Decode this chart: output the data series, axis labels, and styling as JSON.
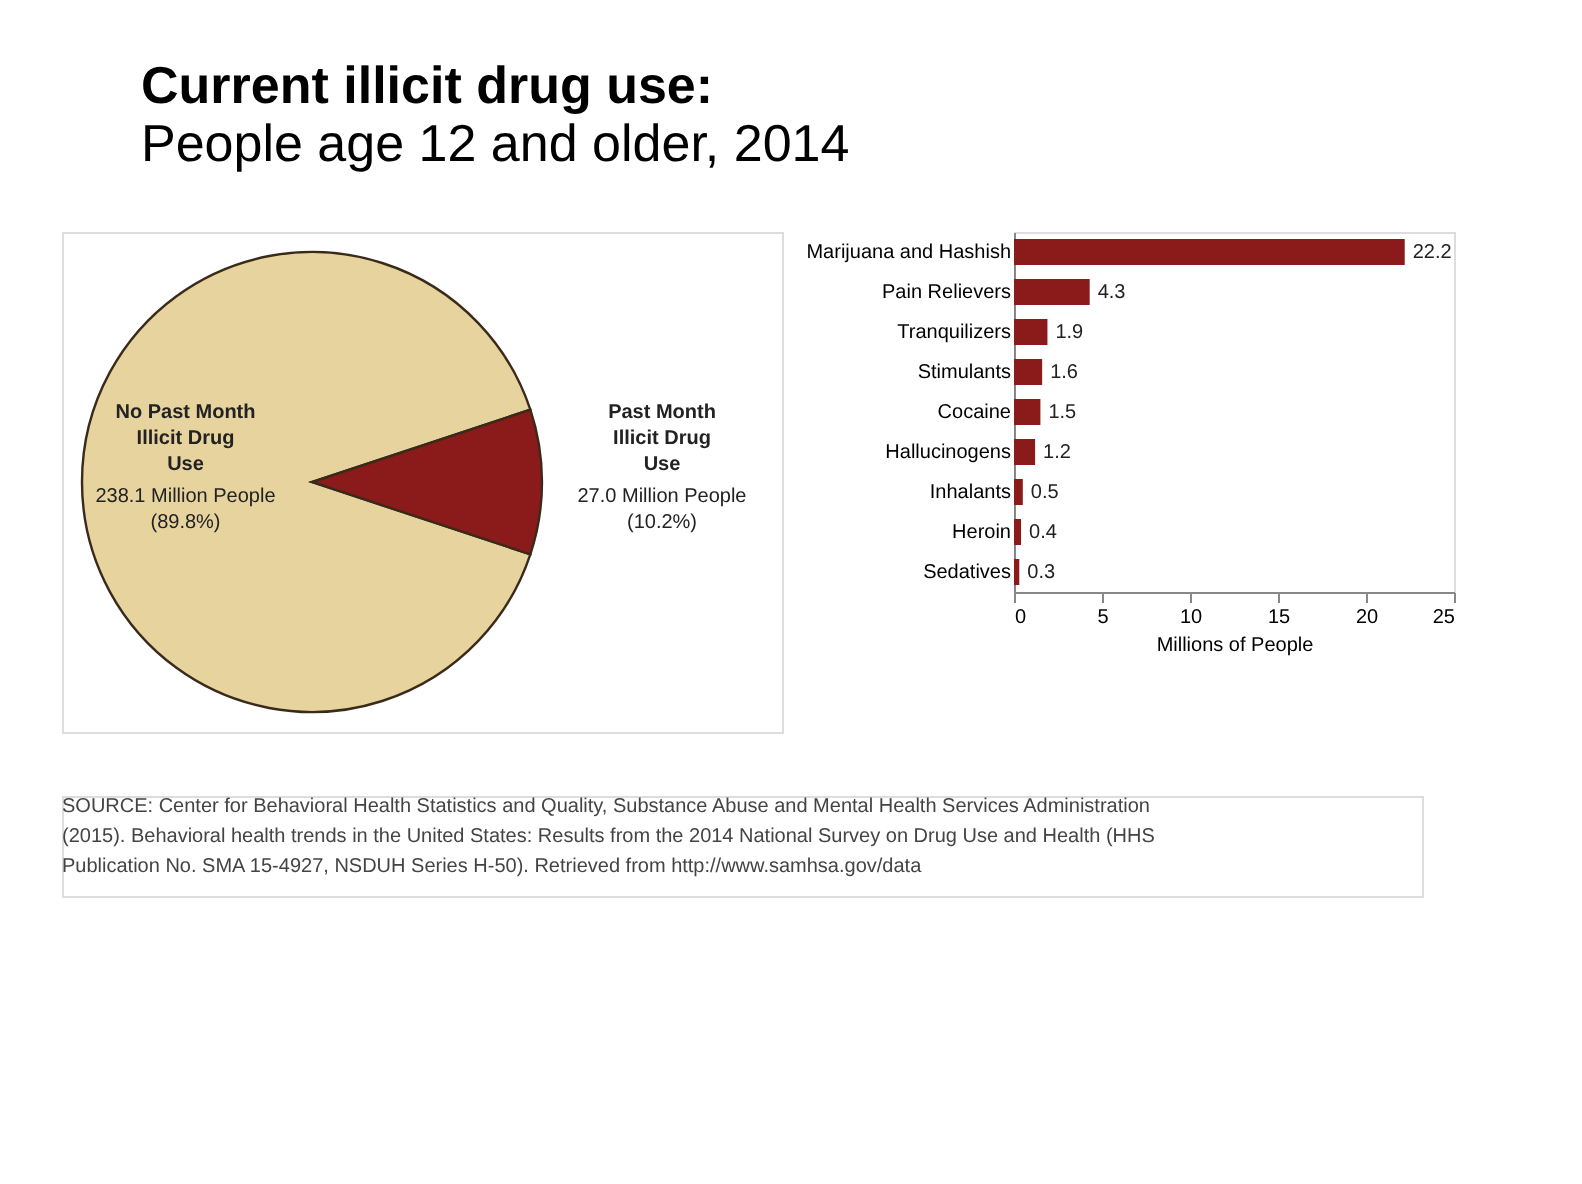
{
  "chart_data": [
    {
      "type": "pie",
      "title": "Current illicit drug use:",
      "subtitle": "People age 12 and older, 2014",
      "categories": [
        "No Past Month Illicit Drug Use",
        "Past Month Illicit Drug Use"
      ],
      "values": [
        238.1,
        27.0
      ],
      "value_labels": [
        "238.1 Million People (89.8%)",
        "27.0 Million People (10.2%)"
      ],
      "colors": [
        "#e6d39e",
        "#8b1a1a"
      ],
      "legend": false
    },
    {
      "type": "bar",
      "orientation": "horizontal",
      "categories": [
        "Marijuana and Hashish",
        "Pain Relievers",
        "Tranquilizers",
        "Stimulants",
        "Cocaine",
        "Hallucinogens",
        "Inhalants",
        "Heroin",
        "Sedatives"
      ],
      "values": [
        22.2,
        4.3,
        1.9,
        1.6,
        1.5,
        1.2,
        0.5,
        0.4,
        0.3
      ],
      "color": "#8b1a1a",
      "xlabel": "Millions of People",
      "xlim": [
        0,
        25
      ],
      "xticks": [
        0,
        5,
        10,
        15,
        20,
        25
      ],
      "data_labels": true,
      "grid": false,
      "annotations": [
        "SOURCE: Center for Behavioral Health Statistics and Quality, Substance Abuse and Mental Health Services Administration (2015). Behavioral health trends in the United States: Results from the 2014 National Survey on Drug Use and Health (HHS Publication No. SMA 15-4927, NSDUH Series H-50). Retrieved from http://www.samhsa.gov/data"
      ]
    }
  ]
}
